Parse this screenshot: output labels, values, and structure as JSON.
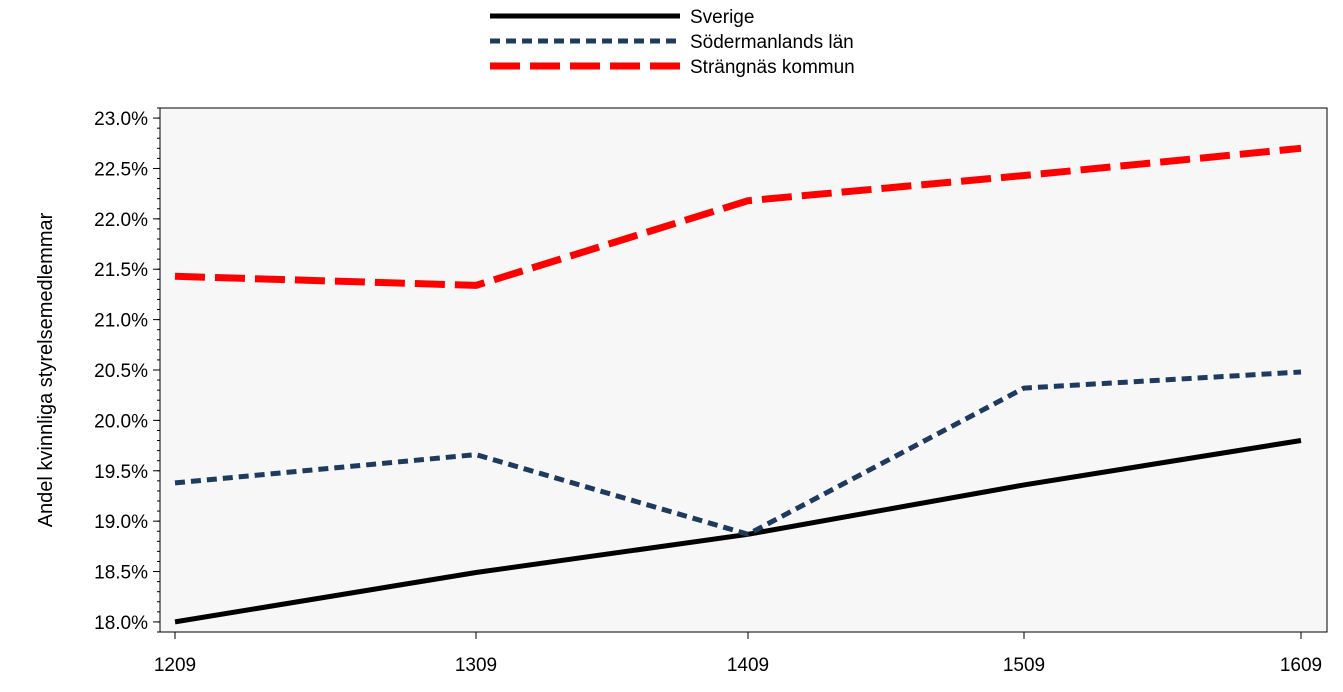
{
  "chart_data": {
    "type": "line",
    "title": "",
    "xlabel": "",
    "ylabel": "Andel kvinnliga styrelsemedlemmar",
    "categories": [
      "1209",
      "1309",
      "1409",
      "1509",
      "1609"
    ],
    "ylim": [
      17.9,
      23.1
    ],
    "yticks": [
      {
        "value": 18.0,
        "label": "18.0%"
      },
      {
        "value": 18.5,
        "label": "18.5%"
      },
      {
        "value": 19.0,
        "label": "19.0%"
      },
      {
        "value": 19.5,
        "label": "19.5%"
      },
      {
        "value": 20.0,
        "label": "20.0%"
      },
      {
        "value": 20.5,
        "label": "20.5%"
      },
      {
        "value": 21.0,
        "label": "21.0%"
      },
      {
        "value": 21.5,
        "label": "21.5%"
      },
      {
        "value": 22.0,
        "label": "22.0%"
      },
      {
        "value": 22.5,
        "label": "22.5%"
      },
      {
        "value": 23.0,
        "label": "23.0%"
      }
    ],
    "grid": false,
    "legend_position": "top-center",
    "plot_background": "#f7f7f8",
    "series": [
      {
        "name": "Sverige",
        "values": [
          18.0,
          18.49,
          18.87,
          19.36,
          19.8
        ],
        "color": "#000000",
        "style": "solid"
      },
      {
        "name": "Södermanlands län",
        "values": [
          19.38,
          19.66,
          18.87,
          20.32,
          20.48
        ],
        "color": "#1f3a5f",
        "style": "dashed"
      },
      {
        "name": "Strängnäs kommun",
        "values": [
          21.43,
          21.34,
          22.18,
          22.43,
          22.7
        ],
        "color": "#ff0000",
        "style": "long-dashed"
      }
    ]
  }
}
